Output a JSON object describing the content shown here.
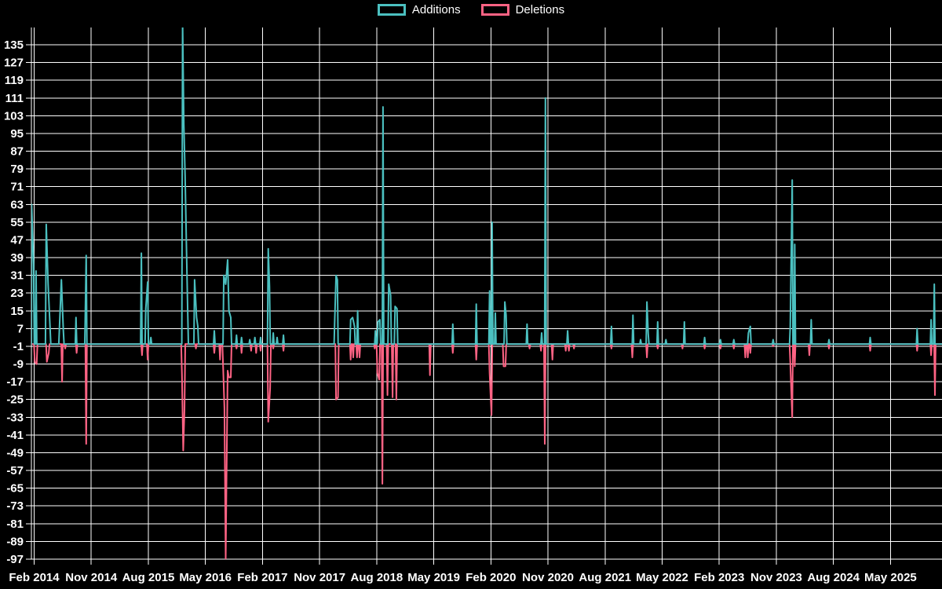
{
  "legend": {
    "items": [
      {
        "label": "Additions",
        "color": "#4bc0c0"
      },
      {
        "label": "Deletions",
        "color": "#ff6384"
      }
    ]
  },
  "colors": {
    "background": "#000000",
    "grid": "#ffffff",
    "axis_text": "#ffffff",
    "additions": "#4bc0c0",
    "deletions": "#ff6384"
  },
  "chart_data": {
    "type": "line",
    "title": "",
    "xlabel": "",
    "ylabel": "",
    "grid": true,
    "legend_position": "top",
    "baseline": 0,
    "x_axis": {
      "unit": "months since Feb 2014 (weekly data)",
      "tick_interval_months": 9,
      "tick_labels": [
        "Feb 2014",
        "Nov 2014",
        "Aug 2015",
        "May 2016",
        "Feb 2017",
        "Nov 2017",
        "Aug 2018",
        "May 2019",
        "Feb 2020",
        "Nov 2020",
        "Aug 2021",
        "May 2022",
        "Feb 2023",
        "Nov 2023",
        "Aug 2024",
        "May 2025"
      ],
      "domain_months": [
        -0.43,
        143.11
      ]
    },
    "y_axis": {
      "ticks": [
        135,
        127,
        119,
        111,
        103,
        95,
        87,
        79,
        71,
        63,
        55,
        47,
        39,
        31,
        23,
        15,
        7,
        -1,
        -9,
        -17,
        -25,
        -33,
        -41,
        -49,
        -57,
        -65,
        -73,
        -81,
        -89,
        -97
      ],
      "domain": [
        142.8,
        -97
      ]
    },
    "series": [
      {
        "name": "Additions",
        "color": "#4bc0c0",
        "points": [
          [
            -0.4,
            63
          ],
          [
            -0.1,
            36
          ],
          [
            0.3,
            33
          ],
          [
            1.9,
            54
          ],
          [
            2.2,
            27
          ],
          [
            2.5,
            8
          ],
          [
            4.0,
            8
          ],
          [
            4.3,
            29
          ],
          [
            4.6,
            6
          ],
          [
            6.6,
            12
          ],
          [
            8.1,
            21
          ],
          [
            8.2,
            40
          ],
          [
            16.9,
            41
          ],
          [
            17.6,
            16
          ],
          [
            17.9,
            28
          ],
          [
            18.4,
            3
          ],
          [
            23.4,
            145
          ],
          [
            23.6,
            99
          ],
          [
            23.8,
            76
          ],
          [
            24.0,
            46
          ],
          [
            24.2,
            15
          ],
          [
            25.3,
            29
          ],
          [
            25.6,
            12
          ],
          [
            25.8,
            8
          ],
          [
            28.4,
            6
          ],
          [
            29.9,
            31
          ],
          [
            30.2,
            27
          ],
          [
            30.5,
            38
          ],
          [
            30.7,
            15
          ],
          [
            31.0,
            12
          ],
          [
            31.9,
            4
          ],
          [
            32.7,
            3
          ],
          [
            34.0,
            2
          ],
          [
            34.8,
            3
          ],
          [
            35.7,
            3
          ],
          [
            36.9,
            43
          ],
          [
            37.1,
            26
          ],
          [
            37.7,
            5
          ],
          [
            38.3,
            3
          ],
          [
            39.3,
            4
          ],
          [
            47.4,
            12
          ],
          [
            47.6,
            31
          ],
          [
            47.8,
            29
          ],
          [
            49.9,
            11
          ],
          [
            50.2,
            12
          ],
          [
            50.5,
            8
          ],
          [
            51.0,
            15
          ],
          [
            53.8,
            6
          ],
          [
            54.2,
            10
          ],
          [
            54.5,
            11
          ],
          [
            55.0,
            107
          ],
          [
            55.9,
            27
          ],
          [
            56.2,
            22
          ],
          [
            56.9,
            17
          ],
          [
            57.2,
            16
          ],
          [
            66.0,
            9
          ],
          [
            69.7,
            18
          ],
          [
            71.8,
            24
          ],
          [
            72.2,
            55
          ],
          [
            72.7,
            14
          ],
          [
            74.2,
            19
          ],
          [
            74.4,
            13
          ],
          [
            77.7,
            9
          ],
          [
            80.0,
            5
          ],
          [
            80.6,
            111
          ],
          [
            84.1,
            6
          ],
          [
            91.0,
            8
          ],
          [
            94.4,
            13
          ],
          [
            95.6,
            2
          ],
          [
            96.6,
            19
          ],
          [
            96.8,
            5
          ],
          [
            98.3,
            10
          ],
          [
            99.6,
            2
          ],
          [
            102.5,
            10
          ],
          [
            105.7,
            3
          ],
          [
            108.2,
            2
          ],
          [
            110.3,
            2
          ],
          [
            112.6,
            5
          ],
          [
            112.9,
            8
          ],
          [
            116.5,
            2
          ],
          [
            119.2,
            8
          ],
          [
            119.5,
            74
          ],
          [
            119.9,
            45
          ],
          [
            122.5,
            11
          ],
          [
            125.3,
            2
          ],
          [
            131.8,
            3
          ],
          [
            139.2,
            7
          ],
          [
            141.4,
            11
          ],
          [
            141.9,
            27
          ]
        ]
      },
      {
        "name": "Deletions",
        "color": "#ff6384",
        "points": [
          [
            0.1,
            -8
          ],
          [
            0.4,
            -9
          ],
          [
            2.0,
            -8
          ],
          [
            2.3,
            -4
          ],
          [
            4.4,
            -17
          ],
          [
            4.9,
            -2
          ],
          [
            6.7,
            -4
          ],
          [
            8.2,
            -45
          ],
          [
            17.0,
            -5
          ],
          [
            17.9,
            -7
          ],
          [
            23.3,
            -14
          ],
          [
            23.5,
            -48
          ],
          [
            23.7,
            -30
          ],
          [
            25.5,
            -2
          ],
          [
            28.4,
            -4
          ],
          [
            29.3,
            -7
          ],
          [
            29.8,
            -11
          ],
          [
            30.0,
            -29
          ],
          [
            30.2,
            -97
          ],
          [
            30.5,
            -12
          ],
          [
            30.7,
            -15
          ],
          [
            31.0,
            -15
          ],
          [
            31.9,
            -2
          ],
          [
            32.7,
            -4
          ],
          [
            34.2,
            -3
          ],
          [
            35.0,
            -4
          ],
          [
            35.7,
            -3
          ],
          [
            36.9,
            -35
          ],
          [
            37.2,
            -20
          ],
          [
            37.7,
            -2
          ],
          [
            39.3,
            -3
          ],
          [
            47.6,
            -25
          ],
          [
            47.9,
            -24
          ],
          [
            49.9,
            -7
          ],
          [
            50.3,
            -6
          ],
          [
            50.9,
            -6
          ],
          [
            51.3,
            -6
          ],
          [
            53.7,
            -2
          ],
          [
            54.1,
            -13
          ],
          [
            54.4,
            -16
          ],
          [
            54.9,
            -63
          ],
          [
            55.7,
            -23
          ],
          [
            56.5,
            -24
          ],
          [
            57.1,
            -25
          ],
          [
            62.4,
            -14
          ],
          [
            66.0,
            -4
          ],
          [
            69.7,
            -7
          ],
          [
            71.8,
            -13
          ],
          [
            72.1,
            -32
          ],
          [
            74.0,
            -10
          ],
          [
            74.3,
            -10
          ],
          [
            78.1,
            -2
          ],
          [
            79.9,
            -3
          ],
          [
            80.5,
            -45
          ],
          [
            81.7,
            -7
          ],
          [
            83.8,
            -3
          ],
          [
            84.3,
            -3
          ],
          [
            85.1,
            -2
          ],
          [
            91.0,
            -2
          ],
          [
            94.3,
            -6
          ],
          [
            96.6,
            -6
          ],
          [
            98.3,
            -2
          ],
          [
            102.2,
            -2
          ],
          [
            105.7,
            -2
          ],
          [
            108.2,
            -2
          ],
          [
            110.3,
            -2
          ],
          [
            112.1,
            -6
          ],
          [
            112.5,
            -6
          ],
          [
            112.9,
            -4
          ],
          [
            116.5,
            -1
          ],
          [
            119.2,
            -8
          ],
          [
            119.5,
            -33
          ],
          [
            119.9,
            -10
          ],
          [
            122.2,
            -5
          ],
          [
            125.3,
            -2
          ],
          [
            131.8,
            -3
          ],
          [
            139.2,
            -3
          ],
          [
            141.4,
            -5
          ],
          [
            142.0,
            -23
          ]
        ]
      }
    ]
  }
}
